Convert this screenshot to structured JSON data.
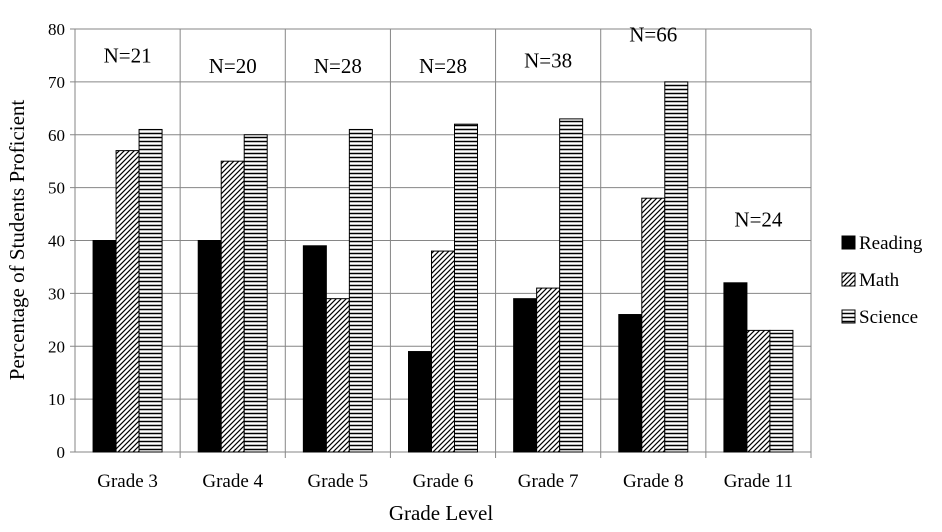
{
  "chart_data": {
    "type": "bar",
    "xlabel": "Grade Level",
    "ylabel": "Percentage of Students Proficient",
    "ylim": [
      0,
      80
    ],
    "yticks": [
      0,
      10,
      20,
      30,
      40,
      50,
      60,
      70,
      80
    ],
    "grid": "horizontal and vertical",
    "legend_position": "right",
    "categories": [
      "Grade 3",
      "Grade 4",
      "Grade 5",
      "Grade 6",
      "Grade 7",
      "Grade 8",
      "Grade 11"
    ],
    "sample_sizes": [
      "N=21",
      "N=20",
      "N=28",
      "N=28",
      "N=38",
      "N=66",
      "N=24"
    ],
    "sample_size_y": [
      75,
      73,
      73,
      73,
      74,
      79,
      44
    ],
    "series": [
      {
        "name": "Reading",
        "pattern": "solid",
        "values": [
          40,
          40,
          39,
          19,
          29,
          26,
          32
        ]
      },
      {
        "name": "Math",
        "pattern": "diagonal",
        "values": [
          57,
          55,
          29,
          38,
          31,
          48,
          23
        ]
      },
      {
        "name": "Science",
        "pattern": "horizontal",
        "values": [
          61,
          60,
          61,
          62,
          63,
          70,
          23
        ]
      }
    ]
  },
  "colors": {
    "bar_fill": "#000000",
    "bar_background": "#ffffff",
    "grid": "#868686",
    "axis": "#868686"
  }
}
